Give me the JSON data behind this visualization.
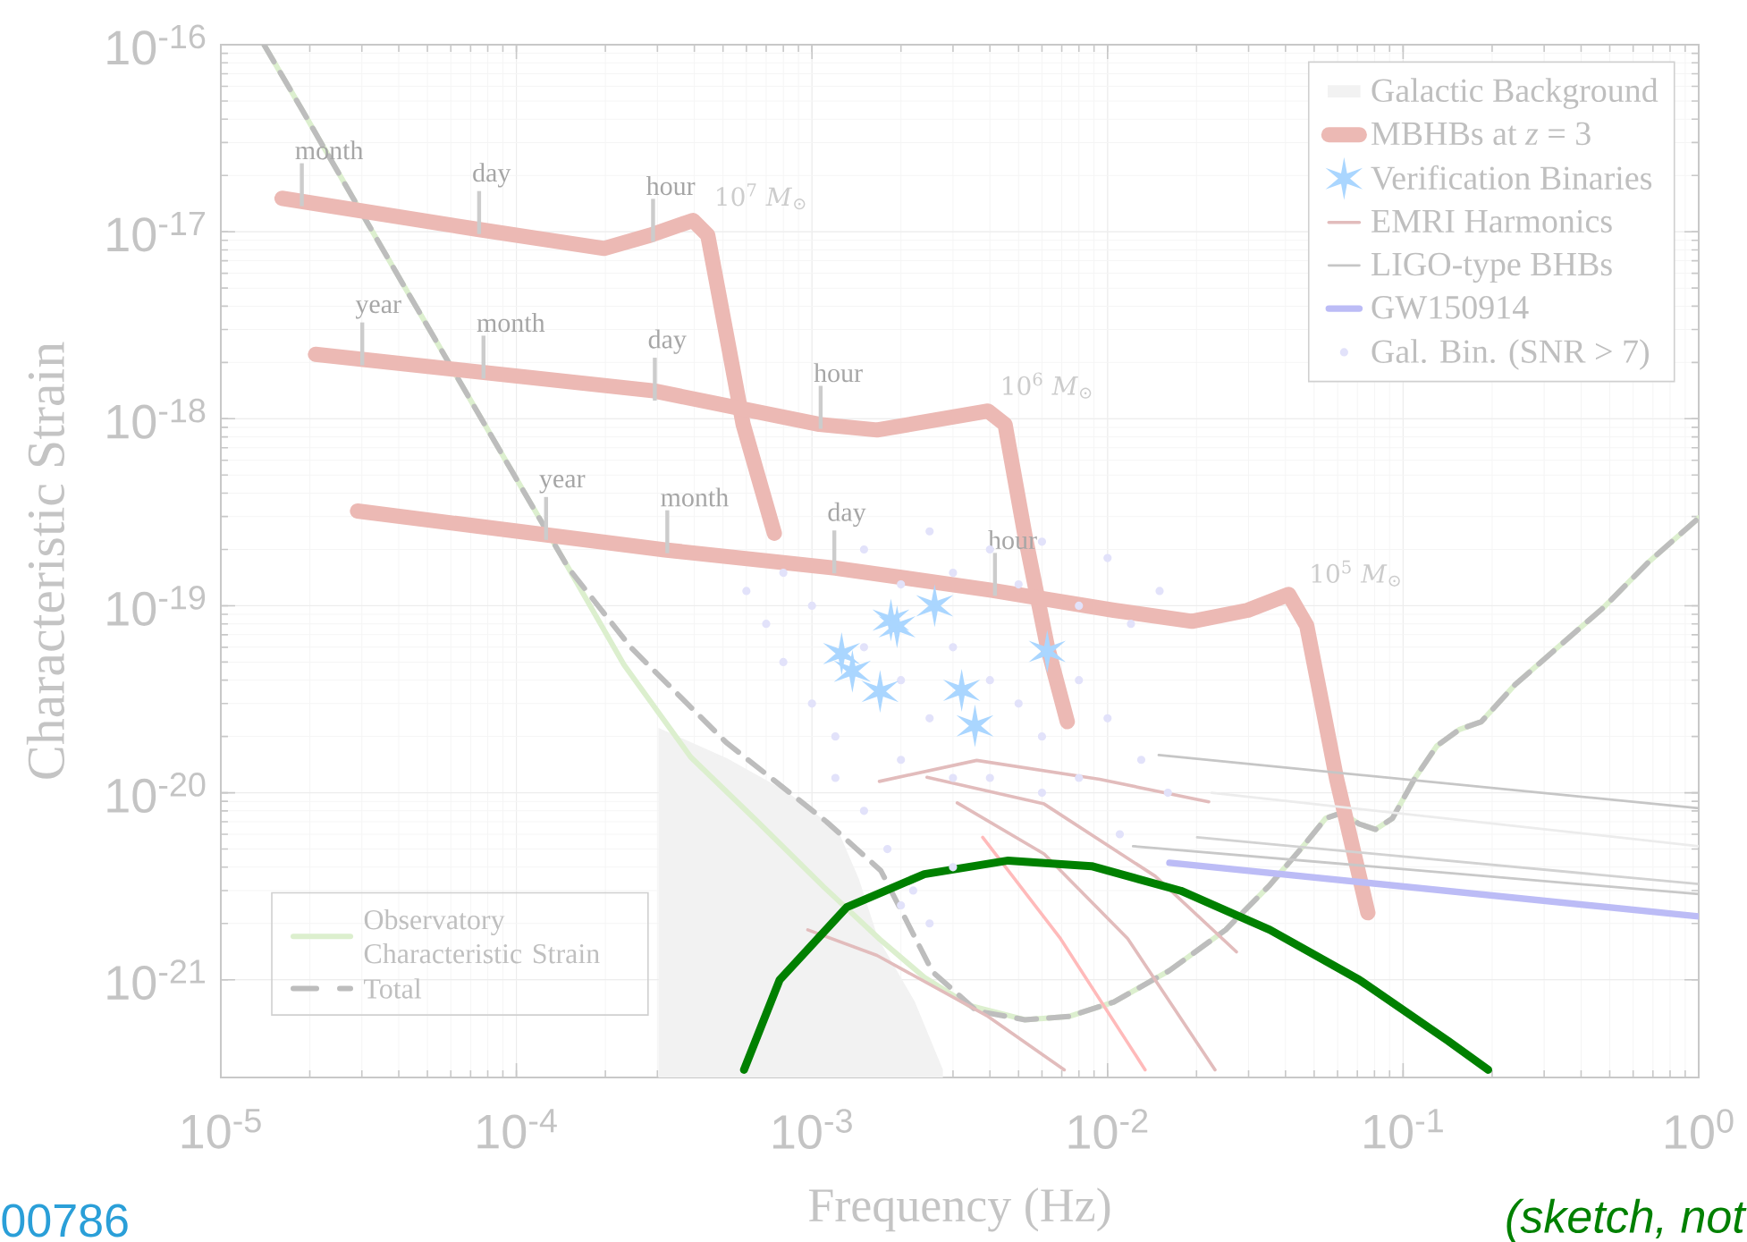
{
  "chart_data": {
    "type": "line",
    "xlabel": "Frequency (Hz)",
    "ylabel": "Characteristic Strain",
    "log": "xy",
    "grid": true,
    "legend": "top right",
    "xlim": [
      1e-05,
      1.0
    ],
    "ylim": [
      3e-22,
      1e-16
    ],
    "xticks": [
      {
        "value": 1e-05,
        "label": "10$^{-5}$"
      },
      {
        "value": 0.0001,
        "label": "10$^{-4}$"
      },
      {
        "value": 0.001,
        "label": "10$^{-3}$"
      },
      {
        "value": 0.01,
        "label": "10$^{-2}$"
      },
      {
        "value": 0.1,
        "label": "10$^{-1}$"
      },
      {
        "value": 1.0,
        "label": "10$^{0}$"
      }
    ],
    "yticks": [
      {
        "value": 1e-21,
        "label": "10$^{-21}$"
      },
      {
        "value": 1e-20,
        "label": "10$^{-20}$"
      },
      {
        "value": 1e-19,
        "label": "10$^{-19}$"
      },
      {
        "value": 1e-18,
        "label": "10$^{-18}$"
      },
      {
        "value": 1e-17,
        "label": "10$^{-17}$"
      },
      {
        "value": 1e-16,
        "label": "10$^{-16}$"
      }
    ],
    "series": [
      {
        "name": "Observatory Characteristic Strain",
        "color": "#dcefce",
        "line_style": "solid",
        "x": [
          1.4e-05,
          1.87e-05,
          2.64e-05,
          4.07e-05,
          6.29e-05,
          9.7e-05,
          0.00015,
          0.000231,
          0.000389,
          0.000655,
          0.0011,
          0.0017,
          0.0024,
          0.0034,
          0.00525,
          0.00743,
          0.0105,
          0.0162,
          0.0251,
          0.0354,
          0.0459,
          0.0547,
          0.0622,
          0.071,
          0.0807,
          0.092,
          0.109,
          0.13,
          0.155,
          0.184,
          0.239,
          0.338,
          0.479,
          0.676,
          1.0
        ],
        "values": [
          1e-16,
          4.58e-17,
          1.78e-17,
          5.47e-18,
          1.68e-18,
          5.18e-19,
          1.59e-19,
          4.84e-20,
          1.55e-20,
          7e-21,
          3.12e-21,
          1.64e-21,
          1.03e-21,
          7.3e-22,
          6.11e-22,
          6.37e-22,
          7.6e-22,
          1.12e-21,
          1.85e-21,
          3.21e-21,
          5.18e-21,
          7.3e-21,
          7.82e-21,
          6.81e-21,
          6.37e-21,
          7.3e-21,
          1.18e-20,
          1.78e-20,
          2.18e-20,
          2.4e-20,
          3.78e-20,
          6.1e-20,
          9.86e-20,
          1.71e-19,
          2.95e-19
        ]
      },
      {
        "name": "Total",
        "color": "#bdbdbd",
        "line_style": "dashed",
        "x": [
          1.4e-05,
          1.87e-05,
          2.64e-05,
          4.07e-05,
          6.29e-05,
          9.7e-05,
          0.00015,
          0.000245,
          0.000379,
          0.000514,
          0.00112,
          0.00171,
          0.00256,
          0.00361,
          0.00525,
          0.00743,
          0.0105,
          0.0162,
          0.0251,
          0.0354,
          0.0459,
          0.0547,
          0.0622,
          0.071,
          0.0807,
          0.092,
          0.109,
          0.13,
          0.155,
          0.184,
          0.239,
          0.338,
          0.479,
          0.676,
          1.0
        ],
        "values": [
          1e-16,
          4.58e-17,
          1.78e-17,
          5.47e-18,
          1.68e-18,
          5.18e-19,
          1.59e-19,
          5.94e-20,
          2.99e-20,
          1.85e-20,
          7e-21,
          3.83e-21,
          1.1e-21,
          6.81e-22,
          6.11e-22,
          6.37e-22,
          7.6e-22,
          1.12e-21,
          1.85e-21,
          3.21e-21,
          5.18e-21,
          7.3e-21,
          7.82e-21,
          6.81e-21,
          6.37e-21,
          7.3e-21,
          1.18e-20,
          1.78e-20,
          2.18e-20,
          2.4e-20,
          3.78e-20,
          6.1e-20,
          9.86e-20,
          1.71e-19,
          2.95e-19
        ]
      },
      {
        "name": "Galactic Background",
        "type": "area",
        "color": "#f2f2f2",
        "x": [
          0.000305,
          0.000514,
          0.00082,
          0.00122,
          0.00143,
          0.00166,
          0.00221,
          0.00275
        ],
        "values": [
          2.18e-20,
          1.51e-20,
          1e-20,
          6.19e-21,
          3.44e-21,
          1.66e-21,
          7.6e-22,
          3.3e-22
        ]
      },
      {
        "name": "MBHBs at *z* = 3",
        "color": "#ecb9b4",
        "line_style": "solid",
        "x": [
          1.61e-05,
          7.41e-05,
          0.000198,
          0.000284,
          0.000396,
          0.000444,
          0.000514,
          0.000585,
          0.000746
        ],
        "values": [
          1.51e-17,
          1.03e-17,
          8.14e-18,
          9.59e-18,
          1.15e-17,
          9.59e-18,
          2.79e-18,
          9.33e-19,
          2.44e-19
        ]
      },
      {
        "type": "line",
        "color": "#ecb9b4",
        "line_style": "solid",
        "x": [
          2.09e-05,
          0.000292,
          0.00106,
          0.00166,
          0.00394,
          0.0045,
          0.00525,
          0.00625,
          0.00731
        ],
        "values": [
          2.21e-18,
          1.41e-18,
          9.33e-19,
          8.71e-19,
          1.1e-18,
          9.33e-19,
          2.4e-19,
          6.1e-20,
          2.4e-20
        ]
      },
      {
        "type": "line",
        "color": "#ecb9b4",
        "line_style": "solid",
        "x": [
          2.9e-05,
          0.000318,
          0.0012,
          0.00405,
          0.0105,
          0.0193,
          0.0298,
          0.041,
          0.0472,
          0.0596,
          0.076
        ],
        "values": [
          3.21e-19,
          1.99e-19,
          1.59e-19,
          1.21e-19,
          9.46e-20,
          8.26e-20,
          9.46e-20,
          1.15e-19,
          7.82e-20,
          1.18e-20,
          2.28e-21
        ]
      },
      {
        "name": "Verification Binaries",
        "type": "scatter",
        "marker": "cross",
        "color": "#aad6ff",
        "x": [
          0.00126,
          0.00137,
          0.0017,
          0.00185,
          0.00194,
          0.0026,
          0.00321,
          0.00356,
          0.00625
        ],
        "values": [
          5.55e-20,
          4.46e-20,
          3.48e-20,
          8.37e-20,
          7.71e-20,
          1e-19,
          3.53e-20,
          2.28e-20,
          5.7e-20
        ]
      },
      {
        "name": "EMRI Harmonics",
        "color": "#e2bcbc",
        "line_style": "solid",
        "x": [
          0.00169,
          0.00361,
          0.0094,
          0.022
        ],
        "values": [
          1.15e-20,
          1.49e-20,
          1.18e-20,
          8.95e-21
        ]
      },
      {
        "type": "line",
        "color": "#e2bcbc",
        "line_style": "solid",
        "x": [
          0.00245,
          0.0061,
          0.0145,
          0.0273
        ],
        "values": [
          1.21e-20,
          8.71e-21,
          3.58e-21,
          1.41e-21
        ]
      },
      {
        "type": "line",
        "color": "#e2bcbc",
        "line_style": "solid",
        "x": [
          0.0031,
          0.0061,
          0.0117,
          0.0231
        ],
        "values": [
          8.83e-21,
          4.71e-21,
          1.66e-21,
          3.3e-22
        ]
      },
      {
        "type": "line",
        "color": "#ffbaba",
        "line_style": "solid",
        "x": [
          0.00378,
          0.00693,
          0.0134
        ],
        "values": [
          5.78e-21,
          1.66e-21,
          3.3e-22
        ]
      },
      {
        "type": "line",
        "color": "#e2bcbc",
        "line_style": "solid",
        "x": [
          0.000968,
          0.00166,
          0.00394,
          0.00714
        ],
        "values": [
          1.85e-21,
          1.35e-21,
          6.37e-22,
          3.3e-22
        ]
      },
      {
        "name": "LIGO-type BHBs",
        "color": "#c6c6c6",
        "line_style": "solid",
        "x": [
          0.0149,
          1.0
        ],
        "values": [
          1.59e-20,
          8.26e-21
        ]
      },
      {
        "type": "line",
        "color": "#ececec",
        "line_style": "solid",
        "x": [
          0.0225,
          1.0
        ],
        "values": [
          1e-20,
          5.18e-21
        ]
      },
      {
        "type": "line",
        "color": "#d2d2d2",
        "line_style": "solid",
        "x": [
          0.0201,
          1.0
        ],
        "values": [
          5.78e-21,
          3.25e-21
        ]
      },
      {
        "type": "line",
        "color": "#c8c8c8",
        "line_style": "solid",
        "x": [
          0.0122,
          1.0
        ],
        "values": [
          5.18e-21,
          2.87e-21
        ]
      },
      {
        "name": "GW150914",
        "color": "#bcbcf6",
        "line_style": "solid",
        "x": [
          0.0162,
          1.0
        ],
        "values": [
          4.22e-21,
          2.18e-21
        ]
      },
      {
        "name": "Gal. Bin. (SNR > 7)",
        "type": "scatter",
        "marker": "circle",
        "color": "#e2e2fa",
        "x": [
          0.0006,
          0.0008,
          0.0015,
          0.0025,
          0.004,
          0.006,
          0.01,
          0.015,
          0.0007,
          0.001,
          0.002,
          0.003,
          0.005,
          0.008,
          0.012,
          0.0008,
          0.001,
          0.0012,
          0.0015,
          0.002,
          0.0025,
          0.003,
          0.004,
          0.005,
          0.006,
          0.008,
          0.01,
          0.013,
          0.016,
          0.0012,
          0.0015,
          0.002,
          0.003,
          0.004,
          0.006,
          0.008,
          0.0018,
          0.0022,
          0.0025,
          0.003,
          0.002,
          0.011
        ],
        "values": [
          1.2e-19,
          1.5e-19,
          2e-19,
          2.5e-19,
          2e-19,
          2.2e-19,
          1.8e-19,
          1.2e-19,
          8e-20,
          1e-19,
          1.3e-19,
          1.5e-19,
          1.3e-19,
          1e-19,
          8e-20,
          5e-20,
          3e-20,
          2e-20,
          6e-20,
          4e-20,
          2.5e-20,
          6e-20,
          4e-20,
          3e-20,
          2e-20,
          4e-20,
          2.5e-20,
          1.5e-20,
          1e-20,
          1.2e-20,
          8e-21,
          1.5e-20,
          1.2e-20,
          1.2e-20,
          1e-20,
          1.2e-20,
          5e-21,
          3e-21,
          2e-21,
          4e-21,
          2.5e-21,
          6e-21
        ]
      },
      {
        "type": "line",
        "color": "#008000",
        "line_style": "solid",
        "x": [
          0.000589,
          0.000778,
          0.00131,
          0.0024,
          0.00461,
          0.00883,
          0.0177,
          0.0354,
          0.071,
          0.142,
          0.194
        ],
        "values": [
          3.3e-22,
          1e-21,
          2.44e-21,
          3.67e-21,
          4.34e-21,
          4.05e-21,
          2.99e-21,
          1.85e-21,
          1e-21,
          4.71e-22,
          3.3e-22
        ]
      }
    ],
    "annotations": [
      {
        "text": "month",
        "x": 1.88e-05,
        "y": 1.37e-17
      },
      {
        "text": "day",
        "x": 7.48e-05,
        "y": 9.73e-18
      },
      {
        "text": "hour",
        "x": 0.00029,
        "y": 8.84e-18
      },
      {
        "text": "year",
        "x": 3.01e-05,
        "y": 1.93e-18
      },
      {
        "text": "month",
        "x": 7.74e-05,
        "y": 1.64e-18
      },
      {
        "text": "day",
        "x": 0.000294,
        "y": 1.25e-18
      },
      {
        "text": "hour",
        "x": 0.00107,
        "y": 8.84e-19
      },
      {
        "text": "year",
        "x": 0.000126,
        "y": 2.25e-19
      },
      {
        "text": "month",
        "x": 0.000324,
        "y": 1.91e-19
      },
      {
        "text": "day",
        "x": 0.00119,
        "y": 1.49e-19
      },
      {
        "text": "hour",
        "x": 0.00416,
        "y": 1.13e-19
      },
      "10$^{7}$ *M*$_{⊙}$",
      "10$^{6}$ *M*$_{⊙}$",
      "10$^{5}$ *M*$_{⊙}$",
      "00786",
      "*(sketch, not*"
    ]
  }
}
